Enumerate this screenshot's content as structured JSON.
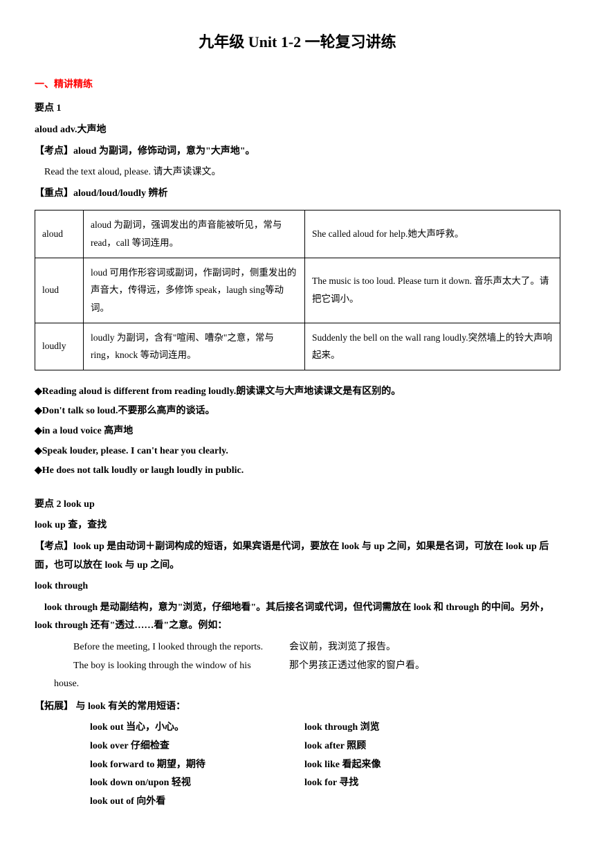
{
  "title": "九年级 Unit 1-2 一轮复习讲练",
  "section1_header": "一、精讲精练",
  "point1": {
    "heading": "要点 1",
    "word_line": "aloud adv.大声地",
    "exam_point": "【考点】aloud 为副词，修饰动词，意为\"大声地\"。",
    "example": "Read the text aloud, please.  请大声读课文。",
    "key_point": "【重点】aloud/loud/loudly 辨析",
    "table": {
      "rows": [
        {
          "word": "aloud",
          "desc": "aloud 为副词，强调发出的声音能被听见，常与read，call 等词连用。",
          "example": "She called aloud for help.她大声呼救。"
        },
        {
          "word": "loud",
          "desc": "loud 可用作形容词或副词，作副词时，侧重发出的声音大，传得远，多修饰 speak，laugh sing等动词。",
          "example": "The music is too loud. Please turn it down. 音乐声太大了。请把它调小。"
        },
        {
          "word": "loudly",
          "desc": "loudly 为副词，含有\"喧闹、嘈杂\"之意，常与ring，knock 等动词连用。",
          "example": "Suddenly the bell on the wall rang loudly.突然墙上的铃大声响起来。"
        }
      ]
    },
    "diamonds": [
      "◆Reading aloud is different from reading loudly.朗读课文与大声地读课文是有区别的。",
      "◆Don't talk so loud.不要那么高声的谈话。",
      "◆in a loud voice  高声地",
      "◆Speak louder, please. I can't hear you clearly.",
      "◆He does not talk loudly or laugh loudly in public."
    ]
  },
  "point2": {
    "heading": "要点 2    look up",
    "sub1": "look up  查，查找",
    "exam_point": "【考点】look up 是由动词＋副词构成的短语，如果宾语是代词，要放在 look 与 up 之间，如果是名词，可放在 look up 后面，也可以放在 look 与 up 之间。",
    "sub2": " look through",
    "sub2_desc": "look through 是动副结构，意为\"浏览，仔细地看\"。其后接名词或代词，但代词需放在 look 和 through 的中间。另外，look through 还有\"透过……看\"之意。例如：",
    "example1_left": "Before the meeting, I looked through the reports.",
    "example1_right": "会议前，我浏览了报告。",
    "example2_left": "The boy is looking through the window of his house.",
    "example2_right": "那个男孩正透过他家的窗户看。",
    "extension_heading": "【拓展】  与 look 有关的常用短语：",
    "phrases": [
      {
        "left": "look out  当心，小心。",
        "right": "look through  浏览"
      },
      {
        "left": "look over  仔细检查",
        "right": "look after  照顾"
      },
      {
        "left": "look forward to  期望，期待",
        "right": "look like    看起来像"
      },
      {
        "left": "look down on/upon  轻视",
        "right": "look for  寻找"
      },
      {
        "left": "look out of  向外看",
        "right": ""
      }
    ]
  }
}
